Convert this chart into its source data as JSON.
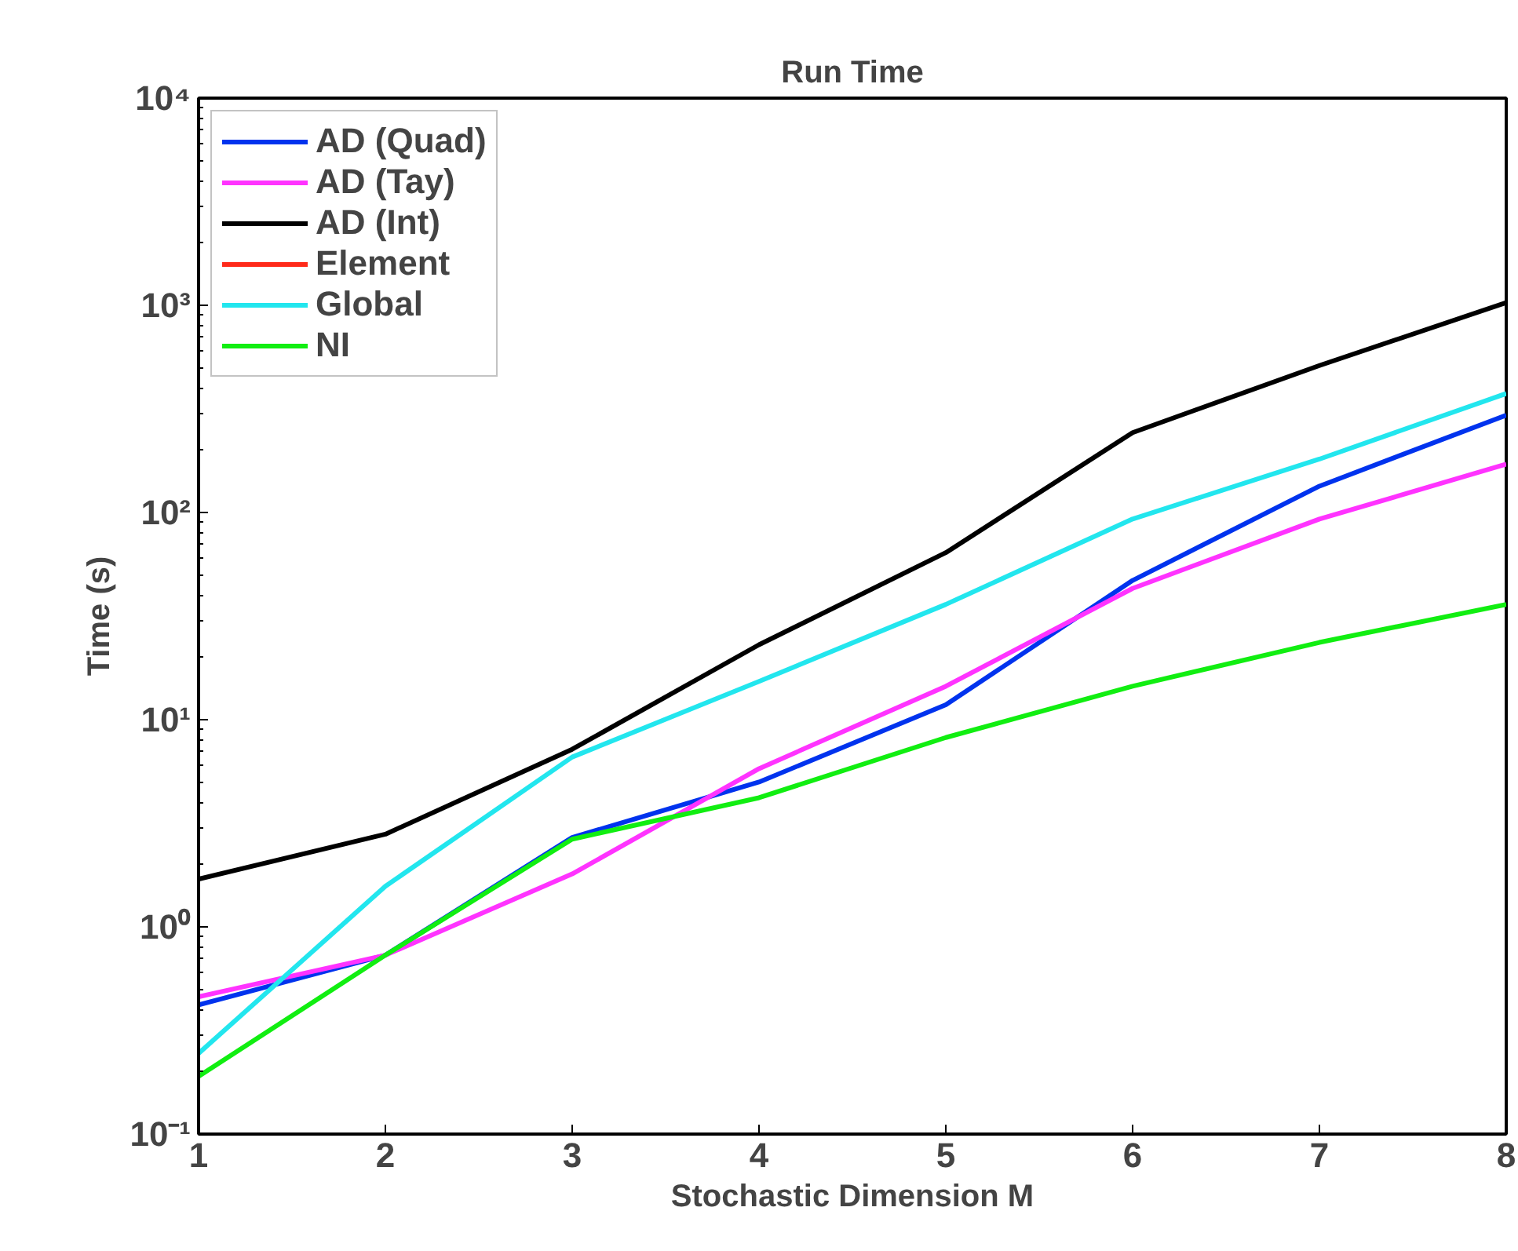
{
  "chart_data": {
    "type": "line",
    "title": "Run Time",
    "xlabel": "Stochastic Dimension M",
    "ylabel": "Time (s)",
    "log": "y",
    "grid": false,
    "legend": "top left",
    "line_style": "solid",
    "x": [
      1,
      2,
      3,
      4,
      5,
      6,
      7,
      8
    ],
    "xlim": [
      1,
      8
    ],
    "xticks": [
      1,
      2,
      3,
      4,
      5,
      6,
      7,
      8
    ],
    "ylim": [
      0.1,
      10000
    ],
    "yticks": [
      {
        "value": 0.1,
        "label": "10⁻¹"
      },
      {
        "value": 1,
        "label": "10⁰"
      },
      {
        "value": 10,
        "label": "10¹"
      },
      {
        "value": 100,
        "label": "10²"
      },
      {
        "value": 1000,
        "label": "10³"
      },
      {
        "value": 10000,
        "label": "10⁴"
      }
    ],
    "series": [
      {
        "name": "AD (Quad)",
        "color": "#0033ee",
        "values": [
          0.42,
          0.73,
          2.7,
          5.0,
          11.8,
          47,
          134,
          295
        ]
      },
      {
        "name": "AD (Tay)",
        "color": "#ff33ff",
        "values": [
          0.46,
          0.73,
          1.8,
          5.8,
          14.5,
          43,
          93,
          171
        ]
      },
      {
        "name": "AD (Int)",
        "color": "#000000",
        "values": [
          1.7,
          2.8,
          7.2,
          23,
          64,
          243,
          512,
          1030
        ]
      },
      {
        "name": "Element",
        "color": "#ff2a1a",
        "values": [
          null,
          null,
          null,
          null,
          null,
          null,
          null,
          null
        ]
      },
      {
        "name": "Global",
        "color": "#22e6ee",
        "values": [
          0.245,
          1.57,
          6.6,
          15.3,
          36,
          93,
          181,
          375
        ]
      },
      {
        "name": "NI",
        "color": "#11ee11",
        "values": [
          0.19,
          0.73,
          2.65,
          4.2,
          8.2,
          14.5,
          23.6,
          36
        ]
      }
    ]
  }
}
